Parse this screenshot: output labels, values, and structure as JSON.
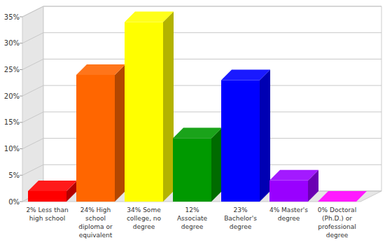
{
  "chart_data": {
    "type": "bar",
    "categories": [
      "2% Less than high school",
      "24% High school diploma or equivalent",
      "34% Some college, no degree",
      "12% Associate degree",
      "23% Bachelor's degree",
      "4% Master's degree",
      "0% Doctoral (Ph.D.) or professional degree"
    ],
    "values": [
      2,
      24,
      34,
      12,
      23,
      4,
      0
    ],
    "colors": [
      "#ff0000",
      "#ff6600",
      "#ffff00",
      "#009900",
      "#0000ff",
      "#9900ff",
      "#ff00ff"
    ],
    "ylim": [
      0,
      35
    ],
    "yticks": [
      {
        "value": 0,
        "label": "0%"
      },
      {
        "value": 5,
        "label": "5%"
      },
      {
        "value": 10,
        "label": "10%"
      },
      {
        "value": 15,
        "label": "15%"
      },
      {
        "value": 20,
        "label": "20%"
      },
      {
        "value": 25,
        "label": "25%"
      },
      {
        "value": 30,
        "label": "30%"
      },
      {
        "value": 35,
        "label": "35%"
      }
    ],
    "grid": true
  }
}
